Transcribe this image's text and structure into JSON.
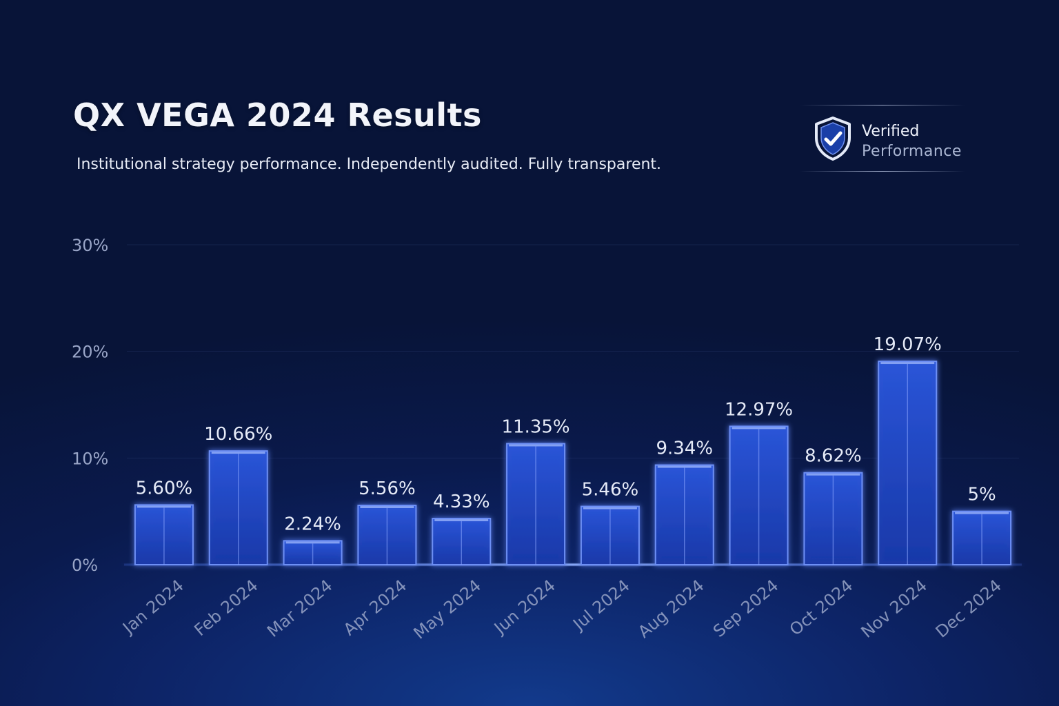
{
  "header": {
    "title": "QX VEGA 2024 Results",
    "subtitle": "Institutional strategy performance. Independently audited. Fully transparent."
  },
  "badge": {
    "icon": "shield-check-icon",
    "line1": "Verified",
    "line2": "Performance"
  },
  "colors": {
    "background": "#0a1a4d",
    "bar_fill": "#1f45c4",
    "bar_edge": "#6d8ff5",
    "axis_text": "#9aa6c8"
  },
  "chart_data": {
    "type": "bar",
    "title": "QX VEGA 2024 Results",
    "categories": [
      "Jan 2024",
      "Feb 2024",
      "Mar 2024",
      "Apr 2024",
      "May 2024",
      "Jun 2024",
      "Jul 2024",
      "Aug 2024",
      "Sep 2024",
      "Oct 2024",
      "Nov 2024",
      "Dec 2024"
    ],
    "values": [
      5.6,
      10.66,
      2.24,
      5.56,
      4.33,
      11.35,
      5.46,
      9.34,
      12.97,
      8.62,
      19.07,
      5
    ],
    "data_labels": [
      "5.60%",
      "10.66%",
      "2.24%",
      "5.56%",
      "4.33%",
      "11.35%",
      "5.46%",
      "9.34%",
      "12.97%",
      "8.62%",
      "19.07%",
      "5%"
    ],
    "ylim": [
      0,
      30
    ],
    "yticks": [
      0,
      10,
      20,
      30
    ],
    "ytick_labels": [
      "0%",
      "10%",
      "20%",
      "30%"
    ],
    "xlabel": "",
    "ylabel": "",
    "grid": true
  }
}
